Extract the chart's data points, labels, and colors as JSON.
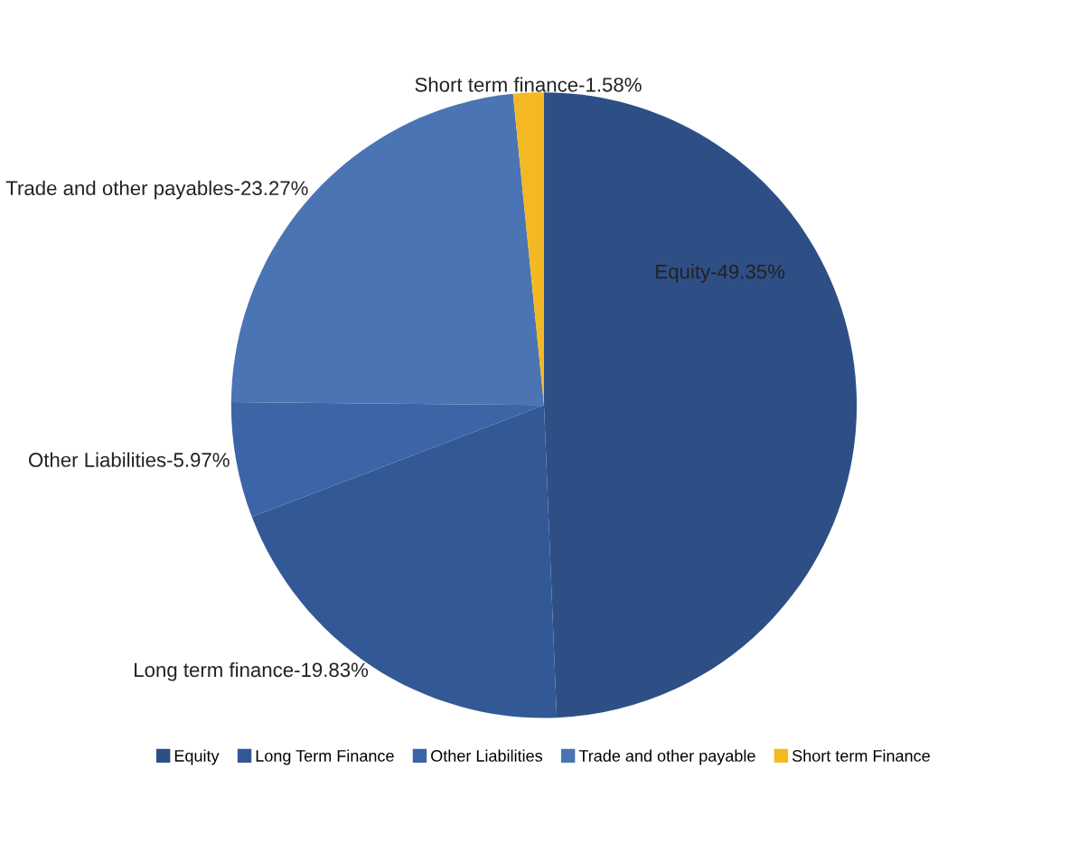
{
  "chart_data": {
    "type": "pie",
    "categories": [
      "Equity",
      "Long Term Finance",
      "Other Liabilities",
      "Trade and other payable",
      "Short term Finance"
    ],
    "values": [
      49.35,
      19.83,
      5.97,
      23.27,
      1.58
    ],
    "value_labels": [
      "Equity-49.35%",
      "Long term finance-19.83%",
      "Other Liabilities-5.97%",
      "Trade and other payables-23.27%",
      "Short term finance-1.58%"
    ],
    "colors": [
      "#2e4f85",
      "#325996",
      "#3b65a6",
      "#4a74b3",
      "#f4b823"
    ],
    "legend": "bottom"
  }
}
